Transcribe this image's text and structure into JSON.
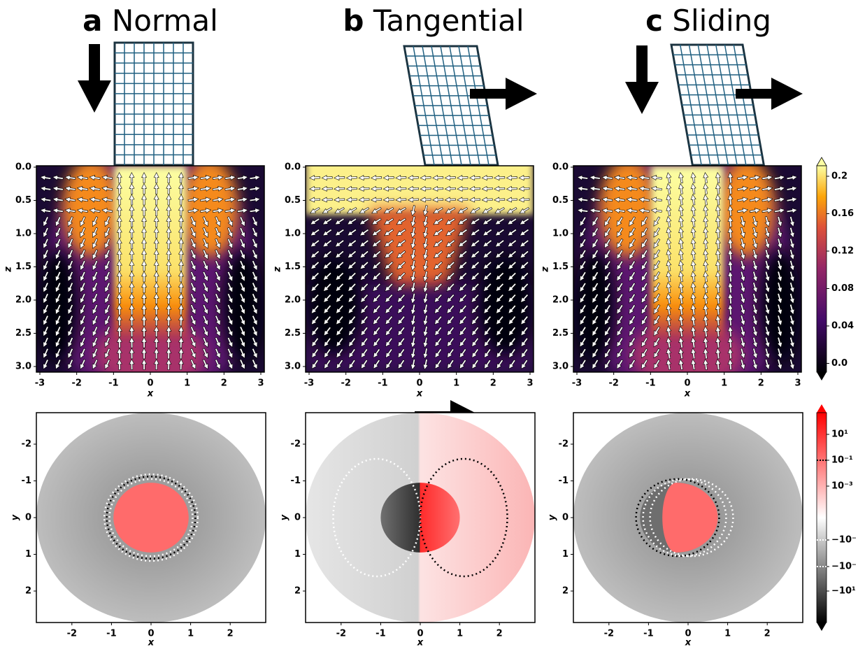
{
  "panels": [
    {
      "letter": "a",
      "title": "Normal"
    },
    {
      "letter": "b",
      "title": "Tangential"
    },
    {
      "letter": "c",
      "title": "Sliding"
    }
  ],
  "top_axes": {
    "xlabel": "x",
    "ylabel": "z",
    "xticks": [
      "-3",
      "-2",
      "-1",
      "0",
      "1",
      "2",
      "3"
    ],
    "yticks": [
      "0.0",
      "0.5",
      "1.0",
      "1.5",
      "2.0",
      "2.5",
      "3.0"
    ]
  },
  "bottom_axes": {
    "xlabel": "x",
    "ylabel": "y",
    "xticks": [
      "-2",
      "-1",
      "0",
      "1",
      "2"
    ],
    "yticks": [
      "-2",
      "-1",
      "0",
      "1",
      "2"
    ]
  },
  "top_colorbar": {
    "ticks": [
      "0.2",
      "0.16",
      "0.12",
      "0.08",
      "0.04",
      "0.0"
    ]
  },
  "bottom_colorbar": {
    "ticks": [
      "10¹",
      "10⁻¹",
      "10⁻³",
      "−10⁻",
      "−10⁻",
      "−10¹"
    ]
  }
}
